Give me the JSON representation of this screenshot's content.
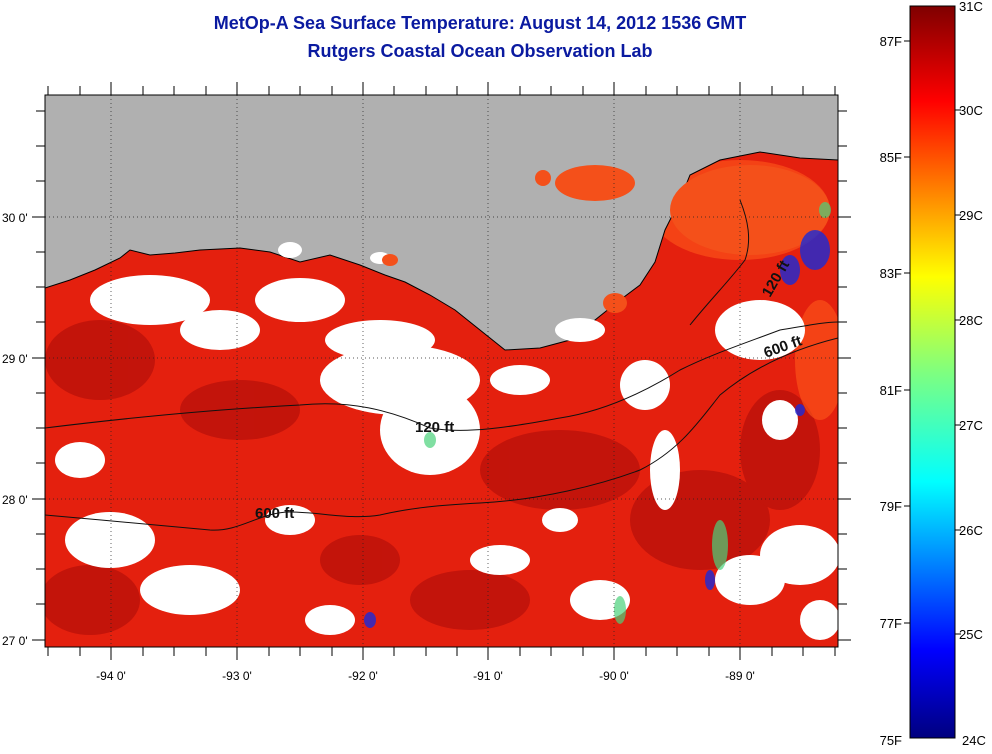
{
  "title": "MetOp-A Sea Surface Temperature:  August 14, 2012 1536 GMT",
  "subtitle": "Rutgers Coastal Ocean Observation Lab",
  "map": {
    "lon_ticks": [
      "-94 0'",
      "-93 0'",
      "-92 0'",
      "-91 0'",
      "-90 0'",
      "-89 0'"
    ],
    "lat_ticks": [
      "30 0'",
      "29 0'",
      "28 0'",
      "27 0'"
    ],
    "contours": [
      {
        "label": "120 ft"
      },
      {
        "label": "600 ft"
      },
      {
        "label": "600 ft"
      },
      {
        "label": "120 ft"
      }
    ],
    "colors": {
      "land": "#b0b0b0",
      "cloud": "#ffffff",
      "sea": "#e41c0c"
    }
  },
  "colorbar": {
    "fahrenheit": [
      "87F",
      "85F",
      "83F",
      "81F",
      "79F",
      "77F",
      "75F"
    ],
    "celsius": [
      "31C",
      "30C",
      "29C",
      "28C",
      "27C",
      "26C",
      "25C",
      "24C"
    ],
    "range_c": [
      24,
      31
    ]
  }
}
